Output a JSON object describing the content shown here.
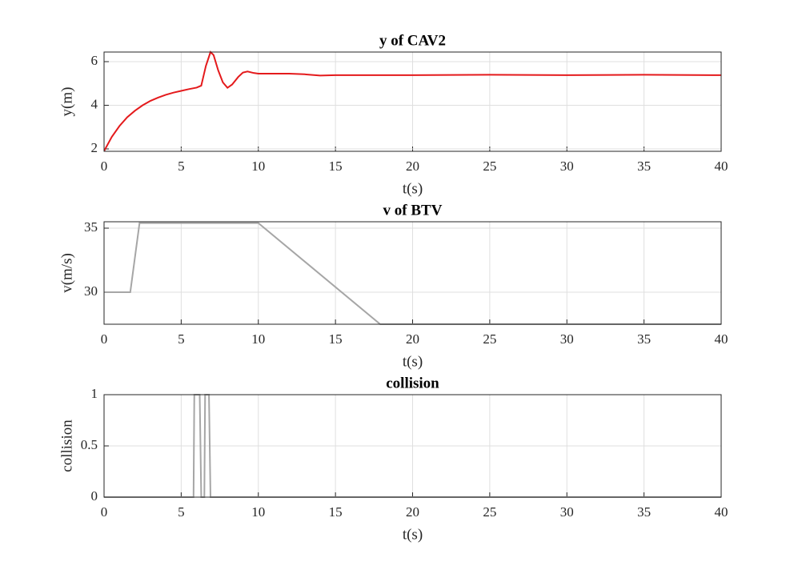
{
  "chart_data": [
    {
      "type": "line",
      "title": "y of CAV2",
      "x_label": "t(s)",
      "y_label": "y(m)",
      "color": "#e41a1c",
      "grid": true,
      "x": [
        0,
        0.5,
        1,
        1.5,
        2,
        2.5,
        3,
        3.5,
        4,
        4.5,
        5,
        5.5,
        6,
        6.3,
        6.6,
        6.9,
        7.1,
        7.4,
        7.7,
        8.0,
        8.3,
        8.7,
        9.0,
        9.3,
        9.7,
        10,
        12,
        13,
        14,
        15,
        16,
        20,
        25,
        30,
        35,
        40
      ],
      "values": [
        1.9,
        2.55,
        3.05,
        3.45,
        3.75,
        4.0,
        4.2,
        4.35,
        4.48,
        4.58,
        4.66,
        4.74,
        4.81,
        4.9,
        5.8,
        6.44,
        6.3,
        5.6,
        5.05,
        4.8,
        4.95,
        5.3,
        5.5,
        5.55,
        5.48,
        5.45,
        5.45,
        5.42,
        5.36,
        5.38,
        5.38,
        5.38,
        5.4,
        5.38,
        5.4,
        5.38
      ],
      "xlim": [
        0,
        40
      ],
      "xticks": [
        0,
        5,
        10,
        15,
        20,
        25,
        30,
        35,
        40
      ],
      "ylim": [
        1.89,
        6.44
      ],
      "yticks": [
        2,
        4,
        6
      ]
    },
    {
      "type": "line",
      "title": "v of BTV",
      "x_label": "t(s)",
      "y_label": "v(m/s)",
      "color": "#a6a6a6",
      "grid": true,
      "x": [
        0,
        1.7,
        2.3,
        10,
        17.9,
        40
      ],
      "values": [
        30,
        30,
        35.4,
        35.4,
        27.5,
        27.5
      ],
      "xlim": [
        0,
        40
      ],
      "xticks": [
        0,
        5,
        10,
        15,
        20,
        25,
        30,
        35,
        40
      ],
      "ylim": [
        27.5,
        35.5
      ],
      "yticks": [
        30,
        35
      ]
    },
    {
      "type": "line",
      "title": "collision",
      "x_label": "t(s)",
      "y_label": "collision",
      "color": "#a6a6a6",
      "grid": true,
      "x": [
        0,
        5.8,
        5.85,
        6.2,
        6.3,
        6.5,
        6.55,
        6.8,
        6.9,
        40
      ],
      "values": [
        0,
        0,
        1,
        1,
        0,
        0,
        1,
        1,
        0,
        0
      ],
      "xlim": [
        0,
        40
      ],
      "xticks": [
        0,
        5,
        10,
        15,
        20,
        25,
        30,
        35,
        40
      ],
      "ylim": [
        0,
        1
      ],
      "yticks": [
        0,
        0.5,
        1
      ]
    }
  ]
}
